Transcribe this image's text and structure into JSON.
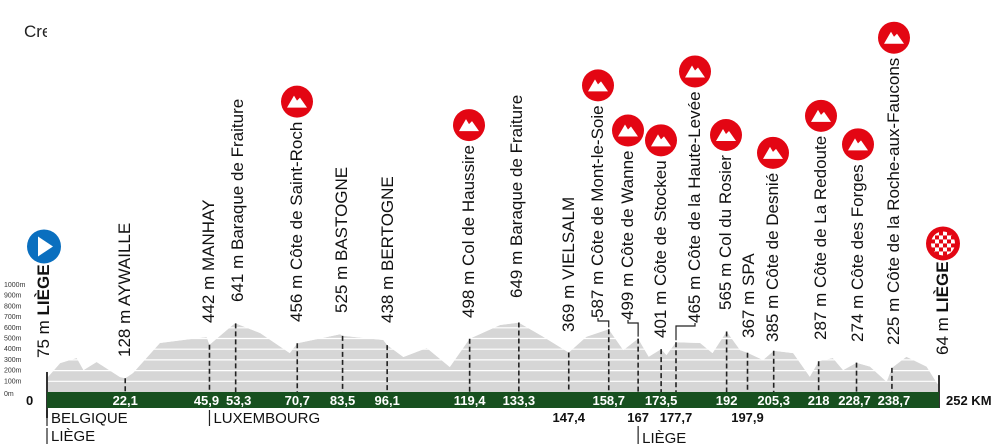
{
  "credit": "Credit: A.S.O",
  "colors": {
    "profile": "#d6d6d6",
    "bar": "#17501f",
    "climb_icon": "#e30613",
    "start_icon": "#0a6fbf"
  },
  "chart_data": {
    "type": "area",
    "x_unit": "km",
    "y_unit": "m",
    "xlim": [
      0,
      252
    ],
    "ylim": [
      0,
      1000
    ],
    "y_ticks": [
      "0m",
      "100m",
      "200m",
      "300m",
      "400m",
      "500m",
      "600m",
      "700m",
      "800m",
      "900m",
      "1000m"
    ],
    "start_label": "0",
    "end_label": "252 KM",
    "profile": [
      [
        0,
        75
      ],
      [
        0.2,
        137
      ],
      [
        3.7,
        270
      ],
      [
        8.4,
        318
      ],
      [
        10.3,
        205
      ],
      [
        14,
        280
      ],
      [
        20.6,
        140
      ],
      [
        22.1,
        128
      ],
      [
        24.3,
        178
      ],
      [
        31.9,
        458
      ],
      [
        45.1,
        514
      ],
      [
        45.9,
        442
      ],
      [
        52.6,
        630
      ],
      [
        53.3,
        641
      ],
      [
        60.2,
        551
      ],
      [
        68.6,
        364
      ],
      [
        70.7,
        456
      ],
      [
        82.8,
        540
      ],
      [
        83.5,
        525
      ],
      [
        95,
        486
      ],
      [
        96.1,
        438
      ],
      [
        100.7,
        327
      ],
      [
        107.3,
        411
      ],
      [
        113.8,
        234
      ],
      [
        119.4,
        498
      ],
      [
        128,
        626
      ],
      [
        133.3,
        649
      ],
      [
        140,
        520
      ],
      [
        147.4,
        369
      ],
      [
        152.4,
        517
      ],
      [
        158.7,
        587
      ],
      [
        162.8,
        392
      ],
      [
        167,
        499
      ],
      [
        170,
        330
      ],
      [
        173.5,
        401
      ],
      [
        175,
        345
      ],
      [
        177.7,
        465
      ],
      [
        184.5,
        458
      ],
      [
        188,
        364
      ],
      [
        192,
        565
      ],
      [
        195.8,
        392
      ],
      [
        197.9,
        367
      ],
      [
        202.3,
        299
      ],
      [
        205.3,
        385
      ],
      [
        210.8,
        364
      ],
      [
        215.5,
        143
      ],
      [
        218,
        287
      ],
      [
        222,
        318
      ],
      [
        224.9,
        205
      ],
      [
        228.7,
        274
      ],
      [
        232.5,
        237
      ],
      [
        237.2,
        96
      ],
      [
        238.7,
        225
      ],
      [
        242.8,
        330
      ],
      [
        248.5,
        237
      ],
      [
        251.3,
        90
      ],
      [
        252,
        64
      ]
    ],
    "points": [
      {
        "km": "0",
        "elev": "75 m",
        "name": "LIÈGE",
        "bold": true,
        "type": "start"
      },
      {
        "km": "22,1",
        "elev": "128 m",
        "name": "AYWAILLE"
      },
      {
        "km": "45,9",
        "elev": "442 m",
        "name": "MANHAY"
      },
      {
        "km": "53,3",
        "elev": "641 m",
        "name": "Baraque de Fraiture"
      },
      {
        "km": "70,7",
        "elev": "456 m",
        "name": "Côte de Saint-Roch",
        "climb": true
      },
      {
        "km": "83,5",
        "elev": "525 m",
        "name": "BASTOGNE"
      },
      {
        "km": "96,1",
        "elev": "438 m",
        "name": "BERTOGNE"
      },
      {
        "km": "119,4",
        "elev": "498 m",
        "name": "Col de Haussire",
        "climb": true
      },
      {
        "km": "133,3",
        "elev": "649 m",
        "name": "Baraque de Fraiture"
      },
      {
        "km": "147,4",
        "elev": "369 m",
        "name": "VIELSALM",
        "below": true
      },
      {
        "km": "158,7",
        "elev": "587 m",
        "name": "Côte de Mont-le-Soie",
        "climb": true
      },
      {
        "km": "167",
        "elev": "499 m",
        "name": "Côte de Wanne",
        "climb": true,
        "below": true
      },
      {
        "km": "173,5",
        "elev": "401 m",
        "name": "Côte de Stockeu",
        "climb": true
      },
      {
        "km": "177,7",
        "elev": "465 m",
        "name": "Côte de la Haute-Levée",
        "climb": true,
        "below": true
      },
      {
        "km": "192",
        "elev": "565 m",
        "name": "Col du Rosier",
        "climb": true
      },
      {
        "km": "197,9",
        "elev": "367 m",
        "name": "SPA",
        "below": true
      },
      {
        "km": "205,3",
        "elev": "385 m",
        "name": "Côte de Desnié",
        "climb": true
      },
      {
        "km": "218",
        "elev": "287 m",
        "name": "Côte de La Redoute",
        "climb": true
      },
      {
        "km": "228,7",
        "elev": "274 m",
        "name": "Côte des Forges",
        "climb": true
      },
      {
        "km": "238,7",
        "elev": "225 m",
        "name": "Côte de la Roche-aux-Faucons",
        "climb": true
      },
      {
        "km": "252",
        "elev": "64 m",
        "name": "LIÈGE",
        "bold": true,
        "type": "finish"
      }
    ],
    "regions": [
      {
        "km": "0",
        "labels": [
          "BELGIQUE",
          "LIÈGE"
        ]
      },
      {
        "km": "45,9",
        "labels": [
          "LUXEMBOURG"
        ]
      },
      {
        "km": "167",
        "labels": [
          "LIÈGE"
        ]
      }
    ]
  }
}
